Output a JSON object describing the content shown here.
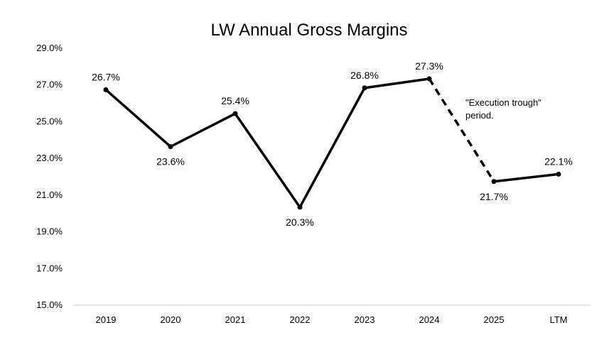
{
  "chart_data": {
    "type": "line",
    "title": "LW Annual Gross Margins",
    "xlabel": "",
    "ylabel": "",
    "categories": [
      "2019",
      "2020",
      "2021",
      "2022",
      "2023",
      "2024",
      "2025",
      "LTM"
    ],
    "series": [
      {
        "values": [
          26.7,
          23.6,
          25.4,
          20.3,
          26.8,
          27.3,
          21.7,
          22.1
        ],
        "labels": [
          "26.7%",
          "23.6%",
          "25.4%",
          "20.3%",
          "26.8%",
          "27.3%",
          "21.7%",
          "22.1%"
        ],
        "color": "#000000",
        "dashed_segment": [
          "2024",
          "2025"
        ]
      }
    ],
    "ylim": [
      15.0,
      29.0
    ],
    "yticks": [
      "15.0%",
      "17.0%",
      "19.0%",
      "21.0%",
      "23.0%",
      "25.0%",
      "27.0%",
      "29.0%"
    ],
    "grid": false,
    "annotations": [
      {
        "lines": [
          "\"Execution trough\"",
          "period."
        ],
        "near": "2025"
      }
    ]
  }
}
